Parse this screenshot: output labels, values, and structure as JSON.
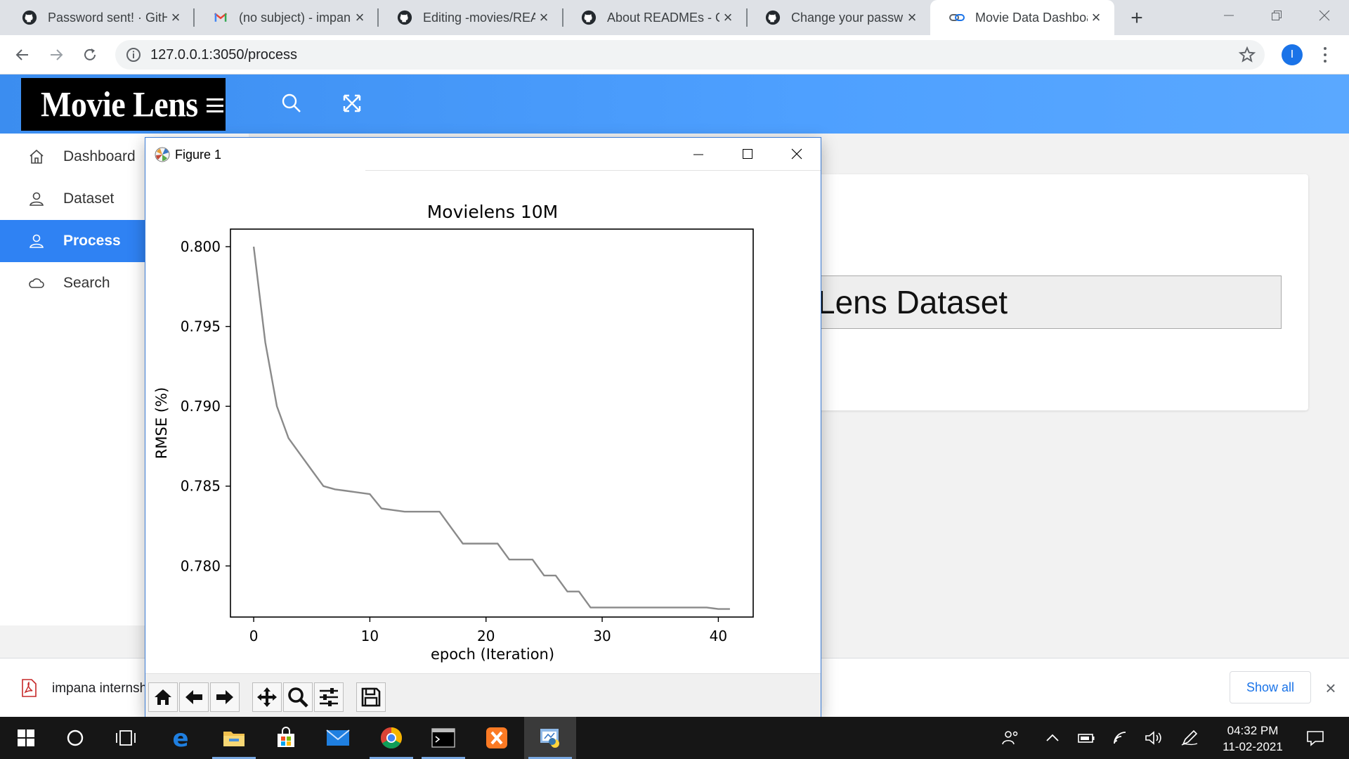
{
  "browser": {
    "tabs": [
      {
        "title": "Password sent! · GitHub",
        "icon": "github-icon",
        "active": false
      },
      {
        "title": "(no subject) - impana",
        "icon": "gmail-icon",
        "active": false
      },
      {
        "title": "Editing -movies/README",
        "icon": "github-icon",
        "active": false
      },
      {
        "title": "About READMEs - GitHub",
        "icon": "github-icon",
        "active": false
      },
      {
        "title": "Change your password",
        "icon": "github-icon",
        "active": false
      },
      {
        "title": "Movie Data Dashboard",
        "icon": "link-icon",
        "active": true
      }
    ],
    "url": "127.0.0.1:3050/process",
    "profile_initial": "I"
  },
  "app": {
    "logo": "Movie Lens",
    "accent": "#3b8df0",
    "sidebar": [
      {
        "label": "Dashboard",
        "icon": "home-icon",
        "active": false
      },
      {
        "label": "Dataset",
        "icon": "user-icon",
        "active": false
      },
      {
        "label": "Process",
        "icon": "user-icon",
        "active": true
      },
      {
        "label": "Search",
        "icon": "cloud-icon",
        "active": false
      }
    ],
    "dataset_title_visible": "Lens Dataset"
  },
  "figure": {
    "window_title": "Figure 1",
    "toolbar": [
      "home-icon",
      "back-icon",
      "forward-icon",
      "pan-icon",
      "zoom-icon",
      "configure-icon",
      "save-icon"
    ]
  },
  "chart_data": {
    "type": "line",
    "title": "Movielens 10M",
    "xlabel": "epoch (Iteration)",
    "ylabel": "RMSE (%)",
    "xlim": [
      -2,
      43
    ],
    "ylim": [
      0.7768,
      0.8011
    ],
    "xticks": [
      0,
      10,
      20,
      30,
      40
    ],
    "yticks": [
      0.78,
      0.785,
      0.79,
      0.795,
      0.8
    ],
    "ytick_labels": [
      "0.780",
      "0.785",
      "0.790",
      "0.795",
      "0.800"
    ],
    "grid": false,
    "line_color": "#8a8a8a",
    "x": [
      0,
      1,
      2,
      3,
      4,
      5,
      6,
      7,
      8,
      9,
      10,
      11,
      12,
      13,
      14,
      15,
      16,
      17,
      18,
      19,
      20,
      21,
      22,
      23,
      24,
      25,
      26,
      27,
      28,
      29,
      30,
      31,
      32,
      33,
      34,
      35,
      36,
      37,
      38,
      39,
      40,
      41
    ],
    "y": [
      0.8,
      0.794,
      0.79,
      0.788,
      0.787,
      0.786,
      0.785,
      0.7848,
      0.7847,
      0.7846,
      0.7845,
      0.7836,
      0.7835,
      0.7834,
      0.7834,
      0.7834,
      0.7834,
      0.7824,
      0.7814,
      0.7814,
      0.7814,
      0.7814,
      0.7804,
      0.7804,
      0.7804,
      0.7794,
      0.7794,
      0.7784,
      0.7784,
      0.7774,
      0.7774,
      0.7774,
      0.7774,
      0.7774,
      0.7774,
      0.7774,
      0.7774,
      0.7774,
      0.7774,
      0.7774,
      0.7773,
      0.7773
    ]
  },
  "download_shelf": {
    "filename": "impana internship",
    "show_all": "Show all"
  },
  "taskbar": {
    "time": "04:32 PM",
    "date": "11-02-2021"
  }
}
